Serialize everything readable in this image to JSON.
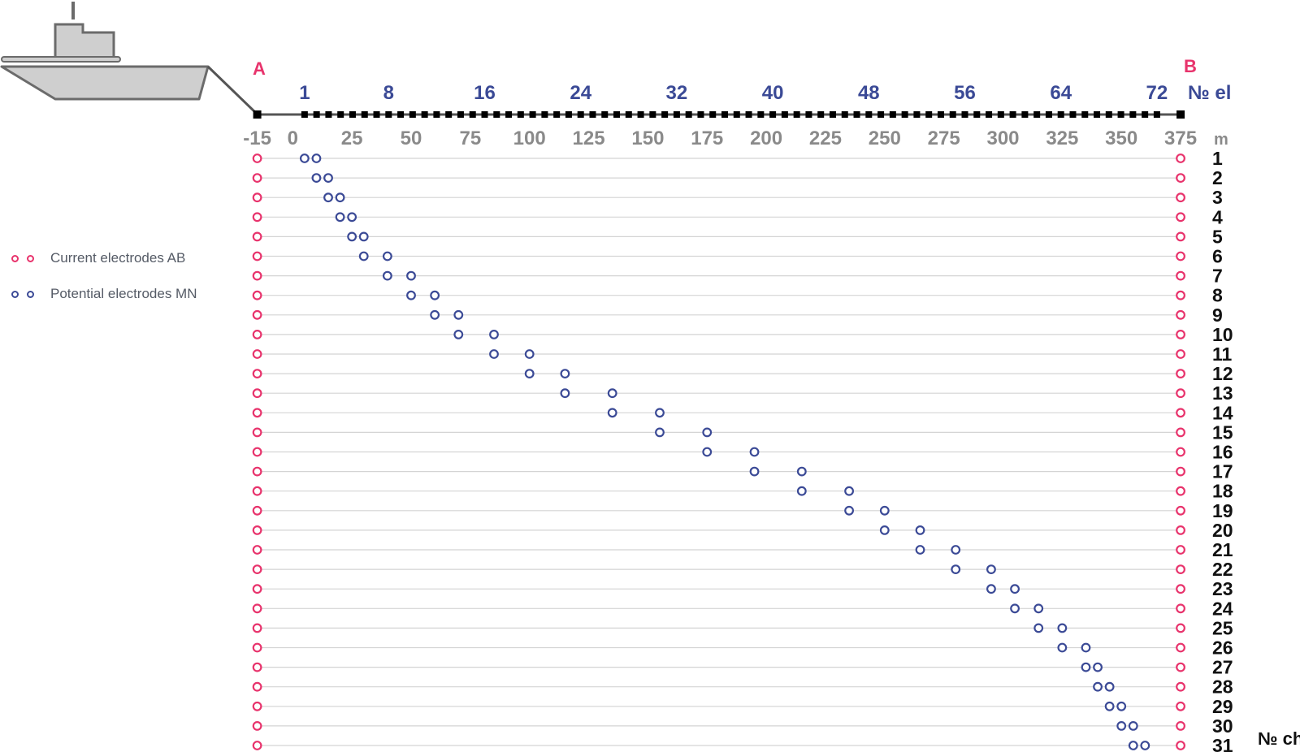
{
  "colors": {
    "current": "#e8336c",
    "potential": "#3b4a96",
    "meters_text": "#8a8a8a",
    "channel_text": "#111111",
    "row_line": "#d4d4d4",
    "cable": "#555555",
    "boat_fill": "#cfcfcf",
    "boat_stroke": "#6b6b6b"
  },
  "endpoints": {
    "a_label": "A",
    "b_label": "B"
  },
  "electrode_axis": {
    "ticks": [
      "1",
      "8",
      "16",
      "24",
      "32",
      "40",
      "48",
      "56",
      "64",
      "72"
    ],
    "unit_label": "№ el"
  },
  "meters_axis": {
    "ticks": [
      "-15",
      "0",
      "25",
      "50",
      "75",
      "100",
      "125",
      "150",
      "175",
      "200",
      "225",
      "250",
      "275",
      "300",
      "325",
      "350",
      "375"
    ],
    "unit_label": "m"
  },
  "channels": {
    "numbers": [
      "1",
      "2",
      "3",
      "4",
      "5",
      "6",
      "7",
      "8",
      "9",
      "10",
      "11",
      "12",
      "13",
      "14",
      "15",
      "16",
      "17",
      "18",
      "19",
      "20",
      "21",
      "22",
      "23",
      "24",
      "25",
      "26",
      "27",
      "28",
      "29",
      "30",
      "31"
    ],
    "unit_label": "№ ch",
    "current_positions_m": [
      -15,
      375
    ],
    "potential_positions_m": [
      [
        5,
        10
      ],
      [
        10,
        15
      ],
      [
        15,
        20
      ],
      [
        20,
        25
      ],
      [
        25,
        30
      ],
      [
        30,
        40
      ],
      [
        40,
        50
      ],
      [
        50,
        60
      ],
      [
        60,
        70
      ],
      [
        70,
        85
      ],
      [
        85,
        100
      ],
      [
        100,
        115
      ],
      [
        115,
        135
      ],
      [
        135,
        155
      ],
      [
        155,
        175
      ],
      [
        175,
        195
      ],
      [
        195,
        215
      ],
      [
        215,
        235
      ],
      [
        235,
        250
      ],
      [
        250,
        265
      ],
      [
        265,
        280
      ],
      [
        280,
        295
      ],
      [
        295,
        305
      ],
      [
        305,
        315
      ],
      [
        315,
        325
      ],
      [
        325,
        335
      ],
      [
        335,
        340
      ],
      [
        340,
        345
      ],
      [
        345,
        350
      ],
      [
        350,
        355
      ],
      [
        355,
        360
      ]
    ]
  },
  "legend": {
    "current_label": "Current electrodes AB",
    "potential_label": "Potential electrodes MN"
  }
}
